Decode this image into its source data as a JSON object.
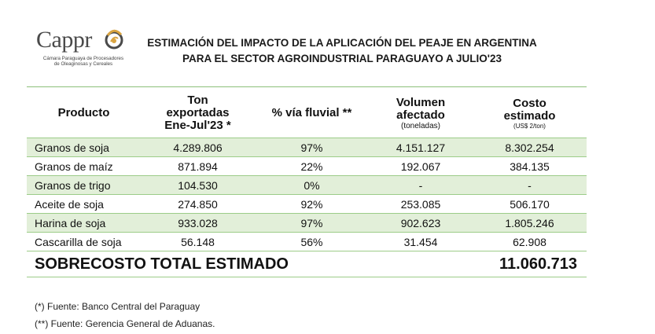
{
  "logo": {
    "word": "Cappr",
    "subtitle_line1": "Cámara Paraguaya de Procesadores",
    "subtitle_line2": "de Oleaginosas y Cereales"
  },
  "title": {
    "line1": "ESTIMACIÓN DEL IMPACTO DE LA APLICACIÓN DEL PEAJE EN ARGENTINA",
    "line2": "PARA EL SECTOR AGROINDUSTRIAL PARAGUAYO A JULIO'23"
  },
  "table": {
    "headers": {
      "producto": "Producto",
      "ton_line1": "Ton",
      "ton_line2": "exportadas",
      "ton_line3": "Ene-Jul'23 *",
      "fluvial": "% vía fluvial **",
      "vol_line1": "Volumen",
      "vol_line2": "afectado",
      "vol_unit": "(toneladas)",
      "costo_line1": "Costo",
      "costo_line2": "estimado",
      "costo_unit": "(US$ 2/ton)"
    },
    "rows": [
      {
        "producto": "Granos de soja",
        "ton": "4.289.806",
        "fluvial": "97%",
        "volumen": "4.151.127",
        "costo": "8.302.254"
      },
      {
        "producto": "Granos de maíz",
        "ton": "871.894",
        "fluvial": "22%",
        "volumen": "192.067",
        "costo": "384.135"
      },
      {
        "producto": "Granos de trigo",
        "ton": "104.530",
        "fluvial": "0%",
        "volumen": "-",
        "costo": "-"
      },
      {
        "producto": "Aceite de soja",
        "ton": "274.850",
        "fluvial": "92%",
        "volumen": "253.085",
        "costo": "506.170"
      },
      {
        "producto": "Harina de soja",
        "ton": "933.028",
        "fluvial": "97%",
        "volumen": "902.623",
        "costo": "1.805.246"
      },
      {
        "producto": "Cascarilla de soja",
        "ton": "56.148",
        "fluvial": "56%",
        "volumen": "31.454",
        "costo": "62.908"
      }
    ],
    "total_label": "SOBRECOSTO TOTAL ESTIMADO",
    "total_value": "11.060.713"
  },
  "notes": [
    "(*) Fuente: Banco Central del Paraguay",
    "(**) Fuente: Gerencia General de Aduanas."
  ],
  "colors": {
    "row_shade": "#e2efd9",
    "border_green": "#9ccc88",
    "logo_gold": "#d9a441"
  }
}
